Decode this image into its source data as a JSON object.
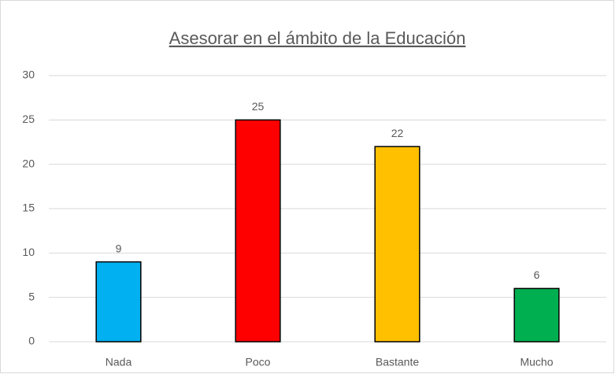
{
  "chart_data": {
    "type": "bar",
    "title": "Asesorar  en el ámbito de la Educación",
    "categories": [
      "Nada",
      "Poco",
      "Bastante",
      "Mucho"
    ],
    "values": [
      9,
      25,
      22,
      6
    ],
    "colors": [
      "#00b0f0",
      "#ff0000",
      "#ffc000",
      "#00b050"
    ],
    "ylim": [
      0,
      30
    ],
    "yticks": [
      0,
      5,
      10,
      15,
      20,
      25,
      30
    ],
    "grid": true
  }
}
